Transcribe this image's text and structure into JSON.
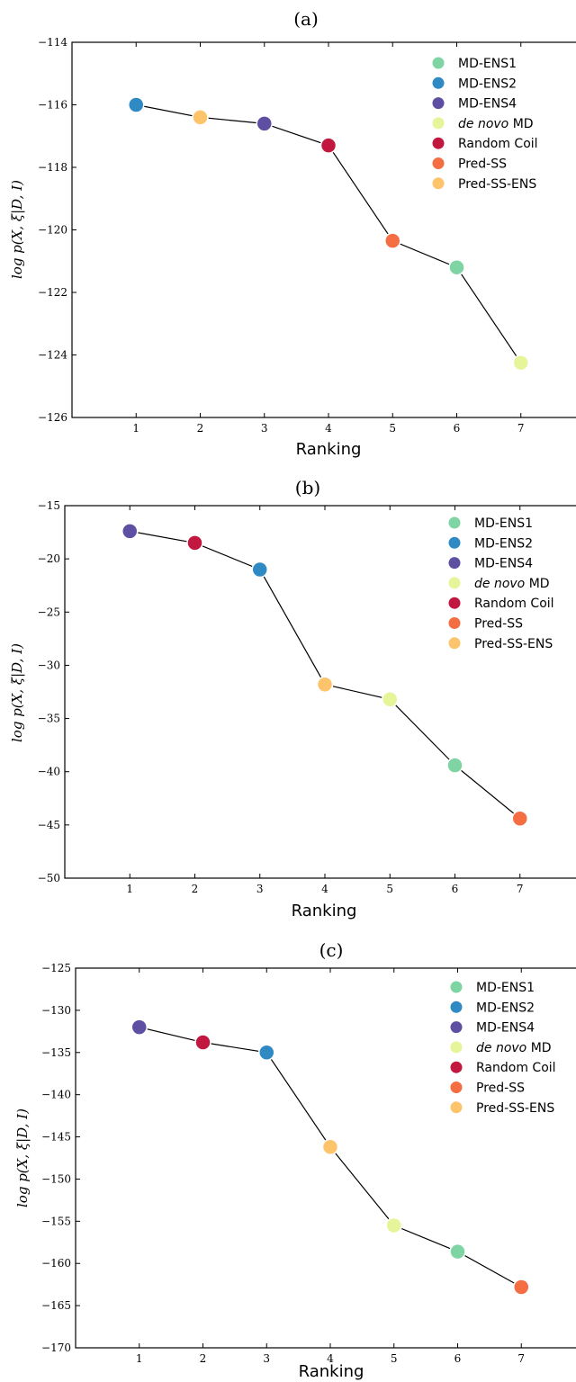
{
  "colors": {
    "MD-ENS1": "#7fd4a3",
    "MD-ENS2": "#2f8ac4",
    "MD-ENS4": "#5e4fa2",
    "de novo MD": "#e6f59a",
    "Random Coil": "#c2183f",
    "Pred-SS": "#f46d43",
    "Pred-SS-ENS": "#fdc46c"
  },
  "legend": {
    "items": [
      {
        "key": "MD-ENS1",
        "label": "MD-ENS1",
        "italic_prefix": ""
      },
      {
        "key": "MD-ENS2",
        "label": "MD-ENS2",
        "italic_prefix": ""
      },
      {
        "key": "MD-ENS4",
        "label": "MD-ENS4",
        "italic_prefix": ""
      },
      {
        "key": "de novo MD",
        "label": " MD",
        "italic_prefix": "de novo"
      },
      {
        "key": "Random Coil",
        "label": "Random Coil",
        "italic_prefix": ""
      },
      {
        "key": "Pred-SS",
        "label": "Pred-SS",
        "italic_prefix": ""
      },
      {
        "key": "Pred-SS-ENS",
        "label": "Pred-SS-ENS",
        "italic_prefix": ""
      }
    ]
  },
  "chart_data": [
    {
      "type": "line",
      "title": "(a)",
      "xlabel": "Ranking",
      "ylabel": "log p(X, ξ|D, I)",
      "xlim": [
        0,
        8
      ],
      "ylim": [
        -126,
        -114
      ],
      "xticks": [
        1,
        2,
        3,
        4,
        5,
        6,
        7
      ],
      "yticks": [
        -126,
        -124,
        -122,
        -120,
        -118,
        -116,
        -114
      ],
      "legend_position": "top-right",
      "grid": false,
      "points": [
        {
          "x": 1,
          "y": -116.0,
          "series": "MD-ENS2"
        },
        {
          "x": 2,
          "y": -116.4,
          "series": "Pred-SS-ENS"
        },
        {
          "x": 3,
          "y": -116.6,
          "series": "MD-ENS4"
        },
        {
          "x": 4,
          "y": -117.3,
          "series": "Random Coil"
        },
        {
          "x": 5,
          "y": -120.35,
          "series": "Pred-SS"
        },
        {
          "x": 6,
          "y": -121.2,
          "series": "MD-ENS1"
        },
        {
          "x": 7,
          "y": -124.25,
          "series": "de novo MD"
        }
      ]
    },
    {
      "type": "line",
      "title": "(b)",
      "xlabel": "Ranking",
      "ylabel": "log p(X, ξ|D, I)",
      "xlim": [
        0,
        8
      ],
      "ylim": [
        -50,
        -15
      ],
      "xticks": [
        1,
        2,
        3,
        4,
        5,
        6,
        7
      ],
      "yticks": [
        -50,
        -45,
        -40,
        -35,
        -30,
        -25,
        -20,
        -15
      ],
      "legend_position": "top-right",
      "grid": false,
      "points": [
        {
          "x": 1,
          "y": -17.4,
          "series": "MD-ENS4"
        },
        {
          "x": 2,
          "y": -18.5,
          "series": "Random Coil"
        },
        {
          "x": 3,
          "y": -21.0,
          "series": "MD-ENS2"
        },
        {
          "x": 4,
          "y": -31.8,
          "series": "Pred-SS-ENS"
        },
        {
          "x": 5,
          "y": -33.2,
          "series": "de novo MD"
        },
        {
          "x": 6,
          "y": -39.4,
          "series": "MD-ENS1"
        },
        {
          "x": 7,
          "y": -44.4,
          "series": "Pred-SS"
        }
      ]
    },
    {
      "type": "line",
      "title": "(c)",
      "xlabel": "Ranking",
      "ylabel": "log p(X, ξ|D, I)",
      "xlim": [
        0,
        8
      ],
      "ylim": [
        -170,
        -125
      ],
      "xticks": [
        1,
        2,
        3,
        4,
        5,
        6,
        7
      ],
      "yticks": [
        -170,
        -165,
        -160,
        -155,
        -150,
        -145,
        -140,
        -135,
        -130,
        -125
      ],
      "legend_position": "top-right",
      "grid": false,
      "points": [
        {
          "x": 1,
          "y": -132.0,
          "series": "MD-ENS4"
        },
        {
          "x": 2,
          "y": -133.8,
          "series": "Random Coil"
        },
        {
          "x": 3,
          "y": -135.0,
          "series": "MD-ENS2"
        },
        {
          "x": 4,
          "y": -146.2,
          "series": "Pred-SS-ENS"
        },
        {
          "x": 5,
          "y": -155.5,
          "series": "de novo MD"
        },
        {
          "x": 6,
          "y": -158.6,
          "series": "MD-ENS1"
        },
        {
          "x": 7,
          "y": -162.8,
          "series": "Pred-SS"
        }
      ]
    }
  ]
}
